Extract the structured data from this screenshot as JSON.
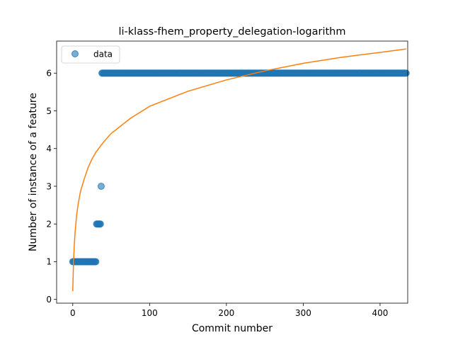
{
  "chart_data": {
    "type": "scatter",
    "title": "li-klass-fhem_property_delegation-logarithm",
    "xlabel": "Commit number",
    "ylabel": "Number of instance of a feature",
    "xlim": [
      -21,
      436
    ],
    "ylim": [
      -0.1,
      6.85
    ],
    "xticks": [
      0,
      100,
      200,
      300,
      400
    ],
    "yticks": [
      0,
      1,
      2,
      3,
      4,
      5,
      6
    ],
    "legend": {
      "position": "top-left",
      "entries": [
        "data"
      ]
    },
    "grid": false,
    "series": [
      {
        "name": "data",
        "kind": "points",
        "color": "#1f77b4",
        "segments": [
          {
            "x_start": 0,
            "x_end": 30,
            "step": 1,
            "y": 1
          },
          {
            "x_start": 31,
            "x_end": 36,
            "step": 1,
            "y": 2
          },
          {
            "x_start": 37,
            "x_end": 37,
            "step": 1,
            "y": 3
          },
          {
            "x_start": 38,
            "x_end": 434,
            "step": 1,
            "y": 6
          }
        ]
      },
      {
        "name": "fit",
        "kind": "line",
        "color": "#ff7f0e",
        "points": [
          [
            0,
            0.22
          ],
          [
            1,
            1.0
          ],
          [
            2,
            1.45
          ],
          [
            3,
            1.77
          ],
          [
            5,
            2.23
          ],
          [
            7,
            2.52
          ],
          [
            10,
            2.86
          ],
          [
            15,
            3.2
          ],
          [
            20,
            3.5
          ],
          [
            25,
            3.72
          ],
          [
            30,
            3.9
          ],
          [
            40,
            4.17
          ],
          [
            50,
            4.4
          ],
          [
            75,
            4.8
          ],
          [
            100,
            5.12
          ],
          [
            150,
            5.52
          ],
          [
            200,
            5.82
          ],
          [
            250,
            6.06
          ],
          [
            300,
            6.26
          ],
          [
            350,
            6.42
          ],
          [
            400,
            6.55
          ],
          [
            434,
            6.64
          ]
        ]
      }
    ]
  }
}
